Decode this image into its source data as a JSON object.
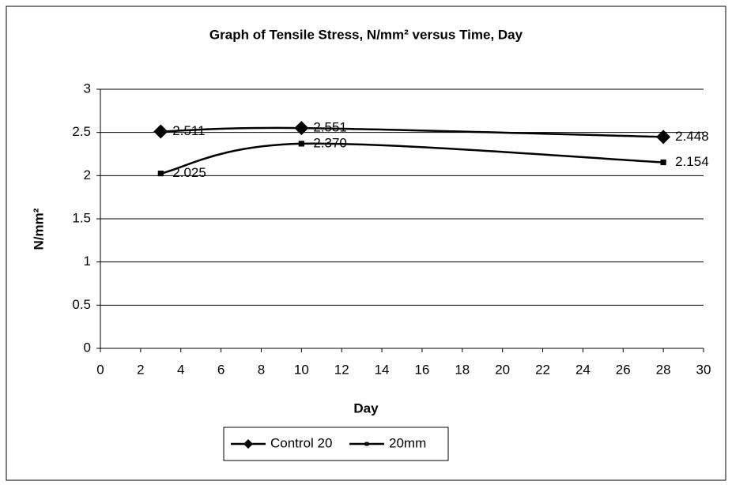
{
  "chart_data": {
    "type": "line",
    "title": "Graph of Tensile Stress, N/mm² versus Time, Day",
    "x_label": "Day",
    "y_label": "N/mm²",
    "x": [
      3,
      10,
      28
    ],
    "series": [
      {
        "name": "Control 20",
        "color": "#000000",
        "marker": "diamond",
        "values": [
          2.511,
          2.551,
          2.448
        ],
        "value_labels": [
          "2.511",
          "2.551",
          "2.448"
        ]
      },
      {
        "name": "20mm",
        "color": "#000000",
        "marker": "square",
        "values": [
          2.025,
          2.37,
          2.154
        ],
        "value_labels": [
          "2.025",
          "2.370",
          "2.154"
        ]
      }
    ],
    "xlim": [
      0,
      30
    ],
    "xticks": [
      0,
      2,
      4,
      6,
      8,
      10,
      12,
      14,
      16,
      18,
      20,
      22,
      24,
      26,
      28,
      30
    ],
    "ylim": [
      0,
      3
    ],
    "yticks": [
      0,
      0.5,
      1,
      1.5,
      2,
      2.5,
      3
    ],
    "grid": true,
    "smooth": true,
    "legend": "bottom"
  }
}
